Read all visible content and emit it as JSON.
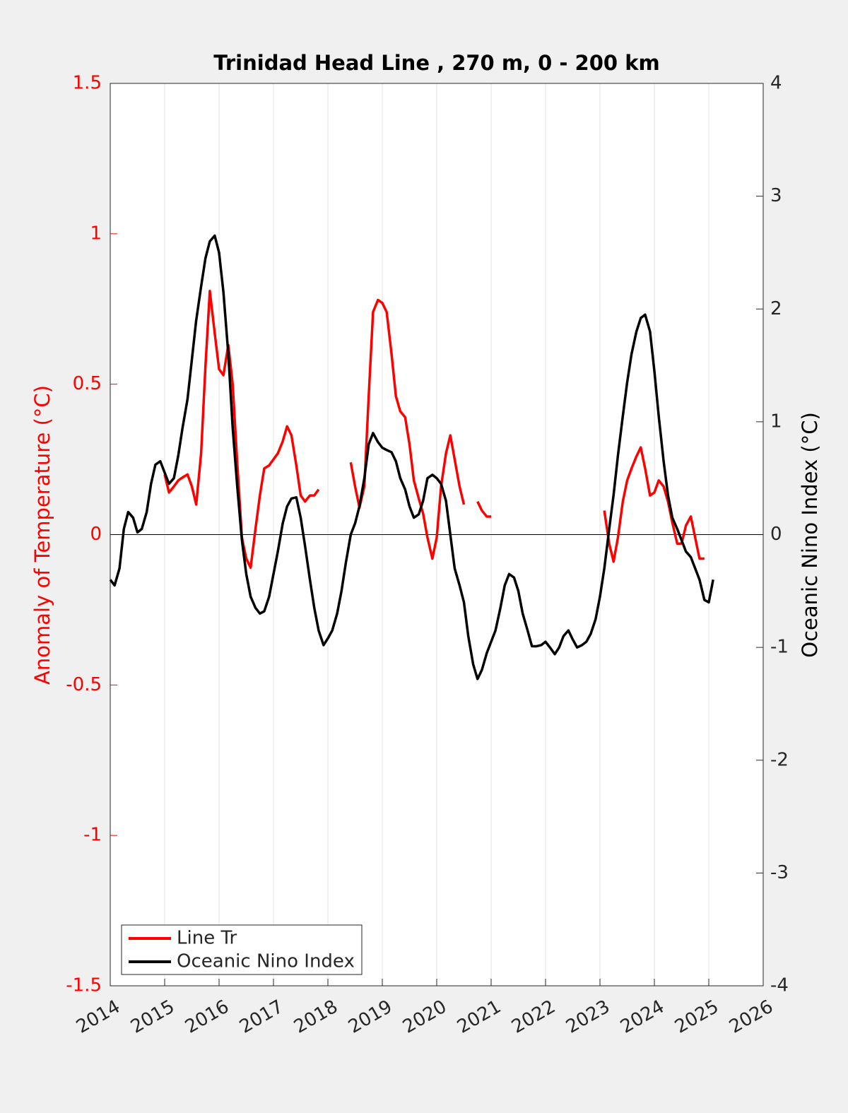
{
  "chart_data": {
    "type": "line",
    "title": "Trinidad Head Line , 270 m, 0 - 200 km",
    "ylabel": "Anomaly of Temperature (°C)",
    "y2label": "Oceanic Nino Index (°C)",
    "xlim": [
      2014,
      2026
    ],
    "xticks": [
      2014,
      2015,
      2016,
      2017,
      2018,
      2019,
      2020,
      2021,
      2022,
      2023,
      2024,
      2025,
      2026
    ],
    "ylim": [
      -1.5,
      1.5
    ],
    "yticks": [
      -1.5,
      -1,
      -0.5,
      0,
      0.5,
      1,
      1.5
    ],
    "y2lim": [
      -4,
      4
    ],
    "y2ticks": [
      -4,
      -3,
      -2,
      -1,
      0,
      1,
      2,
      3,
      4
    ],
    "ylabel_color": "#ff0000",
    "y2label_color": "#000000",
    "grid": true,
    "legend": "lower left",
    "x": [
      2014,
      2014.08,
      2014.17,
      2014.25,
      2014.33,
      2014.42,
      2014.5,
      2014.58,
      2014.67,
      2014.75,
      2014.83,
      2014.92,
      2015,
      2015.08,
      2015.17,
      2015.25,
      2015.33,
      2015.42,
      2015.5,
      2015.58,
      2015.67,
      2015.75,
      2015.83,
      2015.92,
      2016,
      2016.08,
      2016.17,
      2016.25,
      2016.33,
      2016.42,
      2016.5,
      2016.58,
      2016.67,
      2016.75,
      2016.83,
      2016.92,
      2017,
      2017.08,
      2017.17,
      2017.25,
      2017.33,
      2017.42,
      2017.5,
      2017.58,
      2017.67,
      2017.75,
      2017.83,
      2017.92,
      2018,
      2018.08,
      2018.17,
      2018.25,
      2018.33,
      2018.42,
      2018.5,
      2018.58,
      2018.67,
      2018.75,
      2018.83,
      2018.92,
      2019,
      2019.08,
      2019.17,
      2019.25,
      2019.33,
      2019.42,
      2019.5,
      2019.58,
      2019.67,
      2019.75,
      2019.83,
      2019.92,
      2020,
      2020.08,
      2020.17,
      2020.25,
      2020.33,
      2020.42,
      2020.5,
      2020.58,
      2020.67,
      2020.75,
      2020.83,
      2020.92,
      2021,
      2021.08,
      2021.17,
      2021.25,
      2021.33,
      2021.42,
      2021.5,
      2021.58,
      2021.67,
      2021.75,
      2021.83,
      2021.92,
      2022,
      2022.08,
      2022.17,
      2022.25,
      2022.33,
      2022.42,
      2022.5,
      2022.58,
      2022.67,
      2022.75,
      2022.83,
      2022.92,
      2023,
      2023.08,
      2023.17,
      2023.25,
      2023.33,
      2023.42,
      2023.5,
      2023.58,
      2023.67,
      2023.75,
      2023.83,
      2023.92,
      2024,
      2024.08,
      2024.17,
      2024.25,
      2024.33,
      2024.42,
      2024.5,
      2024.58,
      2024.67,
      2024.75,
      2024.83,
      2024.92,
      2025,
      2025.08
    ],
    "series": [
      {
        "name": "Line Tr",
        "color": "#ff0000",
        "axis": "y",
        "values": [
          null,
          null,
          null,
          null,
          null,
          null,
          null,
          null,
          null,
          null,
          null,
          null,
          0.2,
          0.14,
          0.16,
          0.18,
          0.19,
          0.2,
          0.16,
          0.1,
          0.27,
          0.56,
          0.81,
          0.67,
          0.55,
          0.53,
          0.63,
          0.5,
          0.25,
          -0.01,
          -0.08,
          -0.11,
          0.02,
          0.13,
          0.22,
          0.23,
          0.25,
          0.27,
          0.31,
          0.36,
          0.33,
          0.23,
          0.13,
          0.11,
          0.13,
          0.13,
          0.15,
          null,
          null,
          null,
          null,
          null,
          null,
          0.24,
          0.16,
          0.09,
          0.16,
          0.46,
          0.74,
          0.78,
          0.77,
          0.74,
          0.6,
          0.46,
          0.41,
          0.39,
          0.3,
          0.18,
          0.12,
          0.07,
          -0.01,
          -0.08,
          -0.01,
          0.16,
          0.27,
          0.33,
          0.25,
          0.16,
          0.1,
          null,
          null,
          0.11,
          0.08,
          0.06,
          0.06,
          null,
          null,
          null,
          null,
          null,
          null,
          null,
          null,
          null,
          null,
          null,
          null,
          null,
          null,
          null,
          null,
          null,
          null,
          null,
          null,
          null,
          null,
          null,
          null,
          0.08,
          -0.03,
          -0.09,
          -0.01,
          0.11,
          0.18,
          0.22,
          0.26,
          0.29,
          0.22,
          0.13,
          0.14,
          0.18,
          0.16,
          0.11,
          0.04,
          -0.03,
          -0.03,
          0.03,
          0.06,
          -0.01,
          -0.08,
          -0.08,
          null,
          null
        ]
      },
      {
        "name": "Oceanic Nino Index",
        "color": "#000000",
        "axis": "y2",
        "values": [
          -0.4,
          -0.45,
          -0.3,
          0.05,
          0.2,
          0.15,
          0.02,
          0.05,
          0.2,
          0.45,
          0.62,
          0.65,
          0.55,
          0.45,
          0.5,
          0.7,
          0.95,
          1.2,
          1.55,
          1.9,
          2.2,
          2.45,
          2.6,
          2.65,
          2.5,
          2.15,
          1.6,
          0.95,
          0.45,
          -0.05,
          -0.35,
          -0.55,
          -0.65,
          -0.7,
          -0.68,
          -0.55,
          -0.35,
          -0.15,
          0.1,
          0.25,
          0.32,
          0.33,
          0.15,
          -0.1,
          -0.4,
          -0.65,
          -0.85,
          -0.98,
          -0.92,
          -0.85,
          -0.7,
          -0.5,
          -0.25,
          0.0,
          0.1,
          0.25,
          0.5,
          0.8,
          0.9,
          0.82,
          0.77,
          0.75,
          0.73,
          0.65,
          0.5,
          0.4,
          0.25,
          0.15,
          0.18,
          0.3,
          0.5,
          0.53,
          0.5,
          0.45,
          0.3,
          0.0,
          -0.3,
          -0.45,
          -0.6,
          -0.9,
          -1.15,
          -1.28,
          -1.2,
          -1.05,
          -0.95,
          -0.85,
          -0.65,
          -0.45,
          -0.35,
          -0.38,
          -0.5,
          -0.7,
          -0.85,
          -0.99,
          -0.99,
          -0.98,
          -0.95,
          -1.0,
          -1.06,
          -1.0,
          -0.9,
          -0.85,
          -0.93,
          -1.0,
          -0.98,
          -0.95,
          -0.88,
          -0.75,
          -0.55,
          -0.3,
          0.05,
          0.35,
          0.7,
          1.05,
          1.35,
          1.6,
          1.8,
          1.92,
          1.95,
          1.8,
          1.45,
          1.05,
          0.65,
          0.35,
          0.15,
          0.05,
          -0.05,
          -0.15,
          -0.2,
          -0.3,
          -0.4,
          -0.58,
          -0.6,
          -0.4
        ]
      }
    ]
  }
}
